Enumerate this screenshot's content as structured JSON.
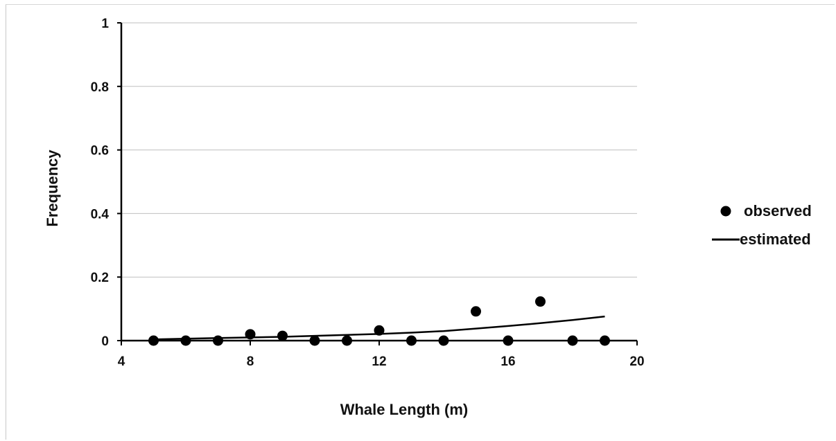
{
  "chart_data": {
    "type": "scatter",
    "title": "",
    "xlabel": "Whale Length (m)",
    "ylabel": "Frequency",
    "xlim": [
      4,
      20
    ],
    "ylim": [
      0,
      1
    ],
    "x_ticks": [
      "4",
      "8",
      "12",
      "16",
      "20"
    ],
    "y_ticks": [
      "0",
      "0.2",
      "0.4",
      "0.6",
      "0.8",
      "1"
    ],
    "grid": "horizontal",
    "legend_position": "right",
    "series": [
      {
        "name": "observed",
        "style": "markers",
        "x": [
          5,
          6,
          7,
          8,
          9,
          10,
          11,
          12,
          13,
          14,
          15,
          16,
          17,
          18,
          19
        ],
        "y": [
          0,
          0,
          0,
          0.02,
          0.015,
          0,
          0,
          0.032,
          0,
          0,
          0.092,
          0,
          0.123,
          0,
          0
        ]
      },
      {
        "name": "estimated",
        "style": "line",
        "x": [
          5,
          6,
          7,
          8,
          9,
          10,
          11,
          12,
          13,
          14,
          15,
          16,
          17,
          18,
          19
        ],
        "y": [
          0.004,
          0.006,
          0.008,
          0.01,
          0.012,
          0.015,
          0.018,
          0.021,
          0.025,
          0.03,
          0.038,
          0.046,
          0.055,
          0.065,
          0.076
        ]
      }
    ],
    "colors": {
      "marker": "#000000",
      "line": "#000000",
      "axis": "#000000",
      "grid": "#bfbfbf"
    }
  }
}
